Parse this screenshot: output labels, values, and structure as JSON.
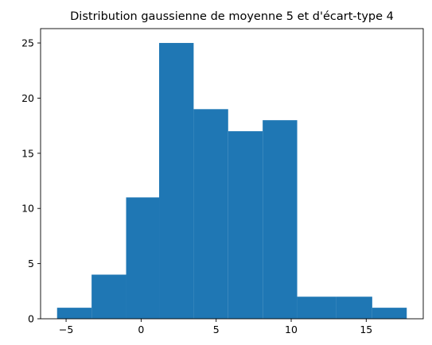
{
  "chart_data": {
    "type": "bar",
    "subtype": "histogram",
    "title": "Distribution gaussienne de moyenne 5 et d'écart-type 4",
    "xlabel": "",
    "ylabel": "",
    "bins": [
      {
        "start": -5.6,
        "end": -3.3,
        "count": 1
      },
      {
        "start": -3.3,
        "end": -1.0,
        "count": 4
      },
      {
        "start": -1.0,
        "end": 1.2,
        "count": 11
      },
      {
        "start": 1.2,
        "end": 3.5,
        "count": 25
      },
      {
        "start": 3.5,
        "end": 5.8,
        "count": 19
      },
      {
        "start": 5.8,
        "end": 8.1,
        "count": 17
      },
      {
        "start": 8.1,
        "end": 10.4,
        "count": 18
      },
      {
        "start": 10.4,
        "end": 13.0,
        "count": 2
      },
      {
        "start": 13.0,
        "end": 15.4,
        "count": 2
      },
      {
        "start": 15.4,
        "end": 17.7,
        "count": 1
      }
    ],
    "xlim": [
      -6.7,
      18.8
    ],
    "ylim": [
      0,
      26.3
    ],
    "xticks": [
      -5,
      0,
      5,
      10,
      15
    ],
    "yticks": [
      0,
      5,
      10,
      15,
      20,
      25
    ],
    "bar_color": "#1f77b4",
    "grid": false
  }
}
